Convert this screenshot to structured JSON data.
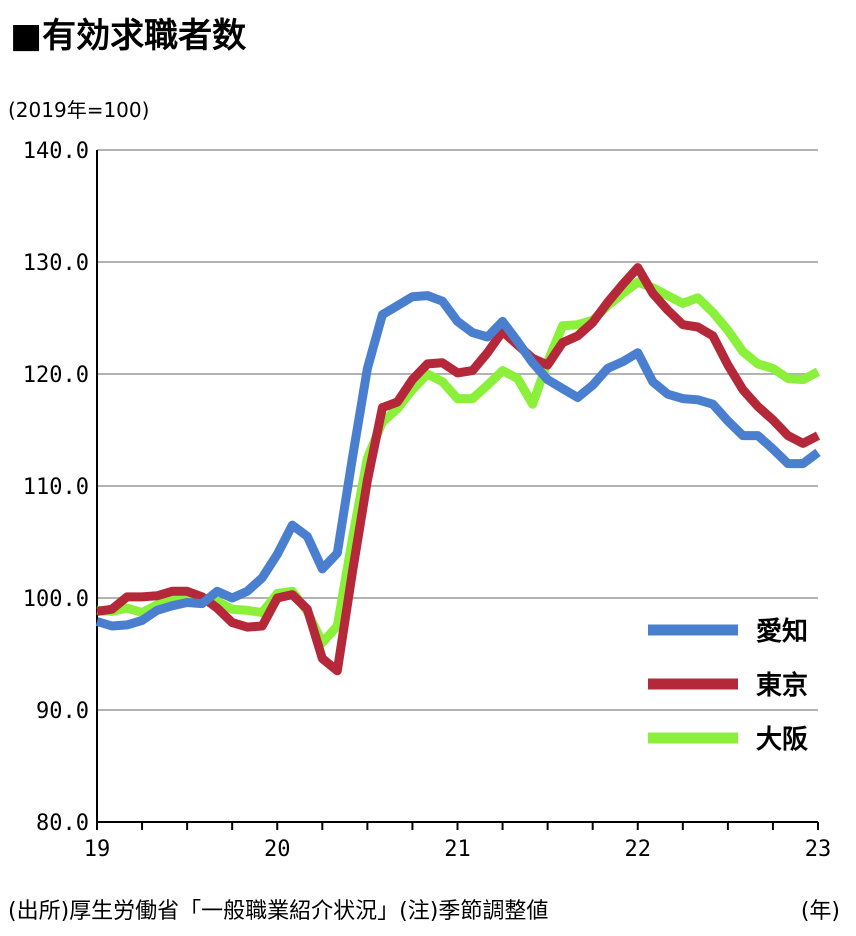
{
  "header": {
    "title": "■有効求職者数",
    "unit": "(2019年=100)"
  },
  "footer": {
    "source": "(出所)厚生労働省「一般職業紹介状況」(注)季節調整値",
    "x_unit": "(年)"
  },
  "chart_data": {
    "type": "line",
    "ylim": [
      80,
      140
    ],
    "yticks": [
      "80.0",
      "90.0",
      "100.0",
      "110.0",
      "120.0",
      "130.0",
      "140.0"
    ],
    "ytick_values": [
      80,
      90,
      100,
      110,
      120,
      130,
      140
    ],
    "xlim": [
      0,
      48
    ],
    "xticks": [
      "19",
      "20",
      "21",
      "22",
      "23"
    ],
    "xtick_values": [
      0,
      12,
      24,
      36,
      48
    ],
    "grid": true,
    "legend_position": "bottom-right",
    "series": [
      {
        "name": "愛知",
        "color": "#4a7fd0",
        "values": [
          97.9,
          97.5,
          97.6,
          98.0,
          98.9,
          99.3,
          99.6,
          99.5,
          100.6,
          100.0,
          100.6,
          101.8,
          103.9,
          106.5,
          105.5,
          102.6,
          104.0,
          112.5,
          120.5,
          125.3,
          126.1,
          126.9,
          127.0,
          126.5,
          124.7,
          123.7,
          123.3,
          124.7,
          122.9,
          121.0,
          119.5,
          118.7,
          117.9,
          119.0,
          120.5,
          121.1,
          121.9,
          119.3,
          118.2,
          117.8,
          117.7,
          117.3,
          115.8,
          114.5,
          114.5,
          113.3,
          112.0,
          112.0,
          113.0
        ]
      },
      {
        "name": "東京",
        "color": "#b5283a",
        "values": [
          98.8,
          99.0,
          100.1,
          100.1,
          100.2,
          100.6,
          100.6,
          100.1,
          99.1,
          97.8,
          97.4,
          97.5,
          100.0,
          100.3,
          99.0,
          94.6,
          93.5,
          102.3,
          110.5,
          117.0,
          117.5,
          119.5,
          120.9,
          121.0,
          120.1,
          120.3,
          121.9,
          123.8,
          122.6,
          121.4,
          120.8,
          122.8,
          123.4,
          124.6,
          126.4,
          128.0,
          129.5,
          127.2,
          125.7,
          124.4,
          124.2,
          123.4,
          120.8,
          118.6,
          117.1,
          115.9,
          114.5,
          113.8,
          114.5
        ]
      },
      {
        "name": "大阪",
        "color": "#8af03a",
        "values": [
          98.9,
          98.8,
          99.1,
          98.7,
          99.4,
          99.8,
          100.1,
          100.0,
          99.7,
          99.0,
          98.9,
          98.7,
          100.4,
          100.6,
          98.8,
          96.0,
          97.5,
          105.3,
          112.5,
          115.7,
          116.9,
          118.6,
          120.0,
          119.3,
          117.8,
          117.8,
          119.0,
          120.3,
          119.6,
          117.3,
          121.1,
          124.3,
          124.4,
          124.8,
          126.1,
          127.2,
          128.2,
          127.7,
          127.0,
          126.3,
          126.8,
          125.5,
          123.9,
          122.0,
          120.9,
          120.5,
          119.6,
          119.5,
          120.2
        ]
      }
    ]
  }
}
